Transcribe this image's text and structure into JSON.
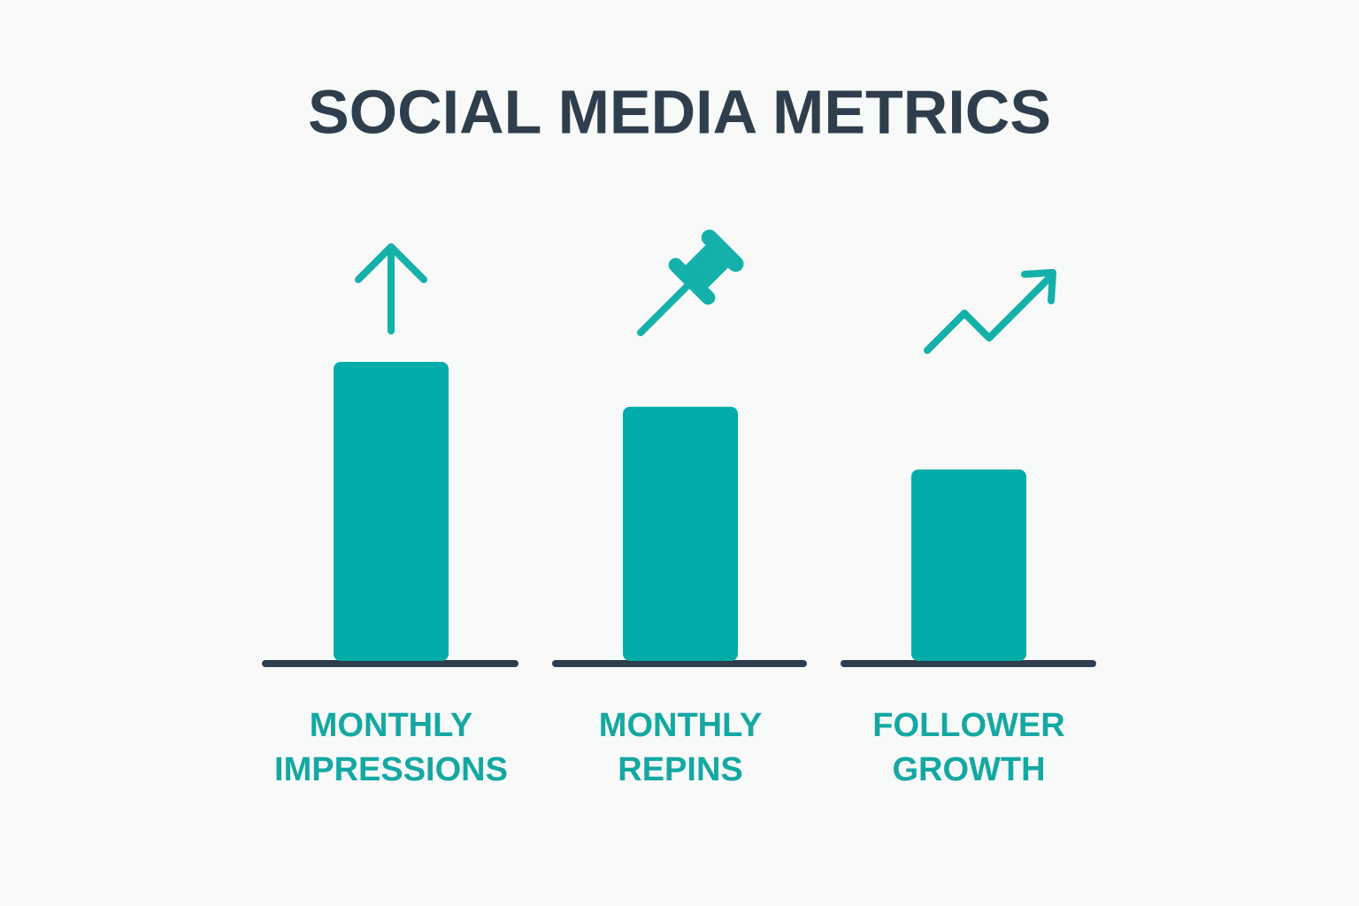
{
  "chart_data": {
    "type": "bar",
    "title": "SOCIAL MEDIA METRICS",
    "categories": [
      "MONTHLY IMPRESSIONS",
      "MONTHLY REPINS",
      "FOLLOWER GROWTH"
    ],
    "values": [
      100,
      85,
      64
    ],
    "color": "#00ada8"
  }
}
